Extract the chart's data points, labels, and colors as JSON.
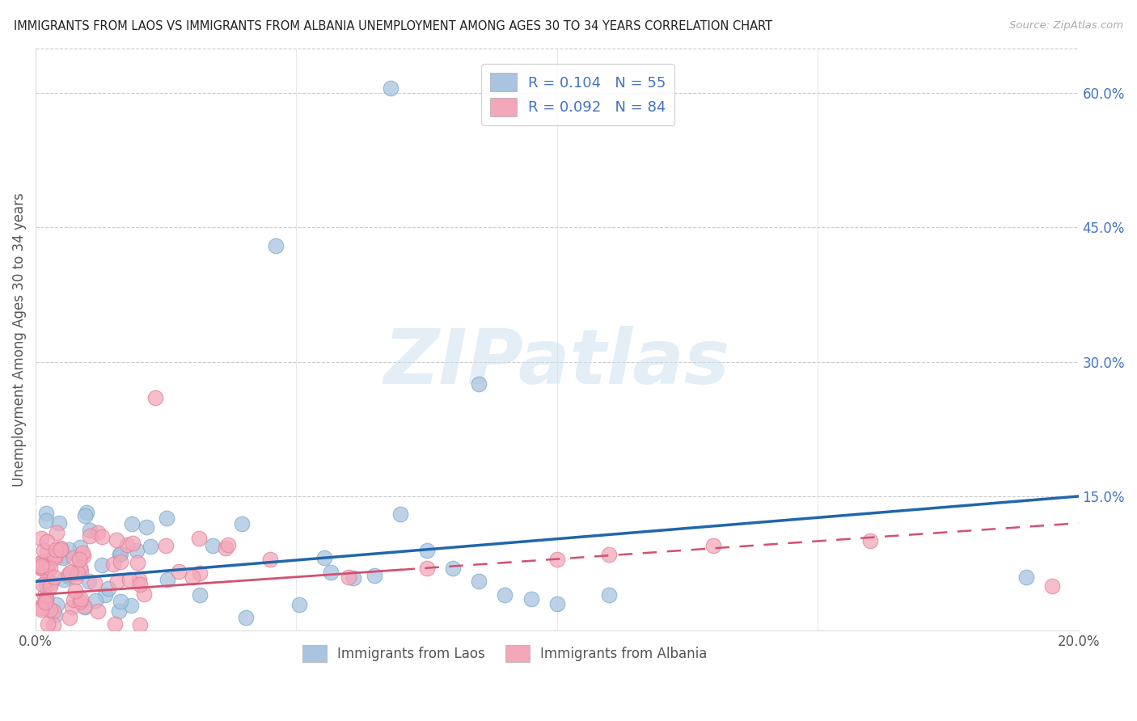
{
  "title": "IMMIGRANTS FROM LAOS VS IMMIGRANTS FROM ALBANIA UNEMPLOYMENT AMONG AGES 30 TO 34 YEARS CORRELATION CHART",
  "source": "Source: ZipAtlas.com",
  "ylabel": "Unemployment Among Ages 30 to 34 years",
  "xlim": [
    0.0,
    0.2
  ],
  "ylim": [
    0.0,
    0.65
  ],
  "x_ticks": [
    0.0,
    0.05,
    0.1,
    0.15,
    0.2
  ],
  "x_tick_labels": [
    "0.0%",
    "",
    "",
    "",
    "20.0%"
  ],
  "y_ticks": [
    0.15,
    0.3,
    0.45,
    0.6
  ],
  "y_tick_labels": [
    "15.0%",
    "30.0%",
    "45.0%",
    "60.0%"
  ],
  "laos_R": 0.104,
  "laos_N": 55,
  "albania_R": 0.092,
  "albania_N": 84,
  "laos_color": "#a8c4e0",
  "laos_edge_color": "#7aaac8",
  "albania_color": "#f4a7b9",
  "albania_edge_color": "#e0809a",
  "laos_line_color": "#2166ac",
  "albania_line_color": "#d45070",
  "background_color": "#ffffff",
  "watermark_text": "ZIPatlas",
  "laos_line_start": 0.055,
  "laos_line_end": 0.15,
  "albania_line_start": 0.04,
  "albania_line_end": 0.12,
  "laos_solid_line_end_x": 0.07,
  "grid_color": "#cccccc",
  "tick_label_color": "#4472c4",
  "ylabel_color": "#555555",
  "title_color": "#222222",
  "source_color": "#aaaaaa"
}
